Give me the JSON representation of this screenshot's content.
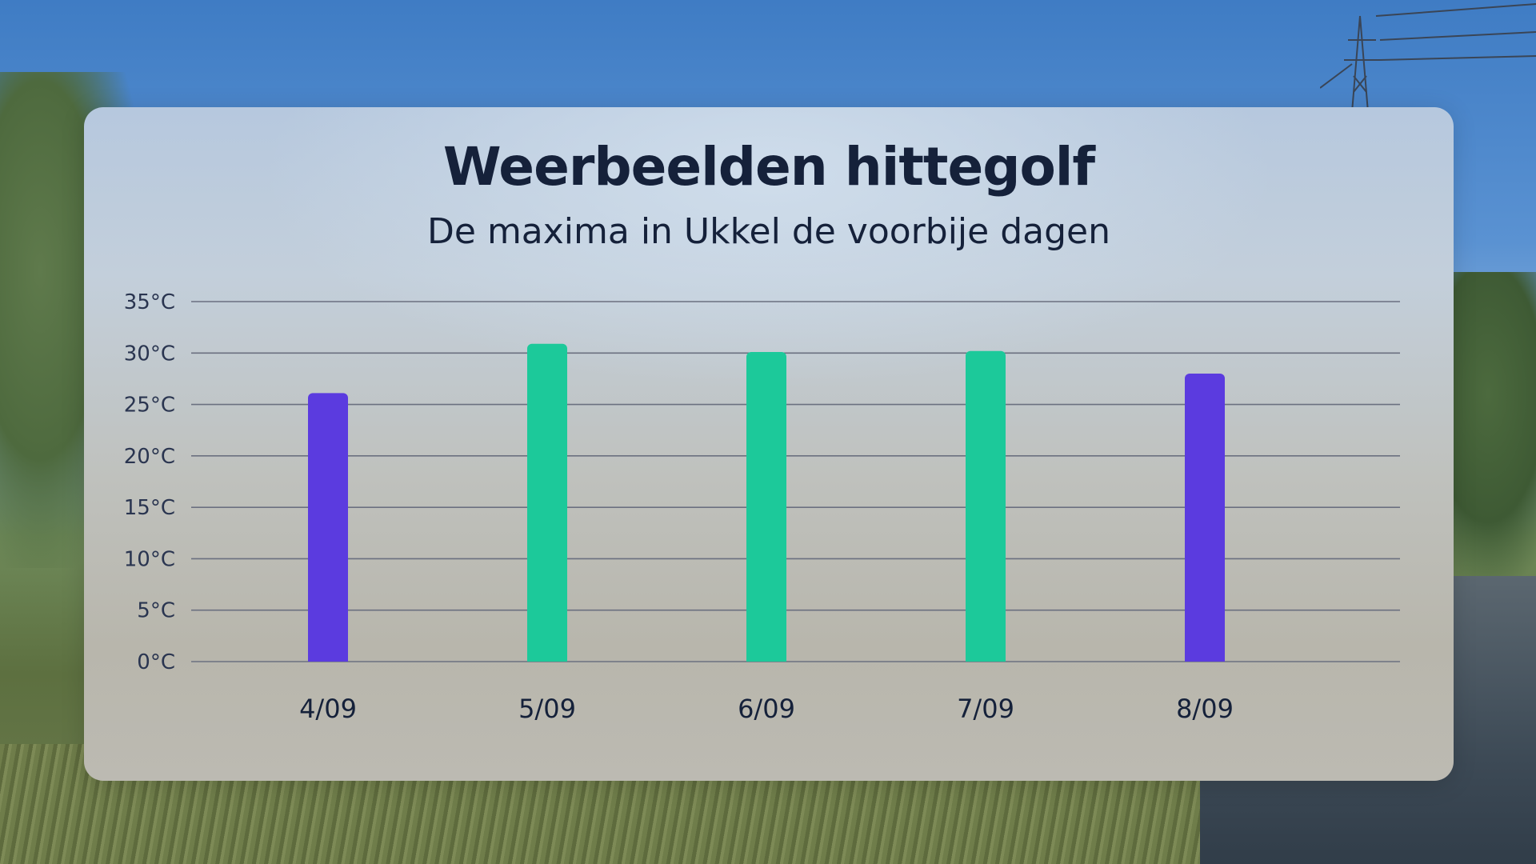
{
  "chart_data": {
    "type": "bar",
    "title": "Weerbeelden hittegolf",
    "subtitle": "De maxima in Ukkel de voorbije dagen",
    "categories": [
      "4/09",
      "5/09",
      "6/09",
      "7/09",
      "8/09"
    ],
    "values": [
      26.1,
      30.9,
      30.1,
      30.2,
      28.0
    ],
    "y_ticks": [
      "0°C",
      "5°C",
      "10°C",
      "15°C",
      "20°C",
      "25°C",
      "30°C",
      "35°C"
    ],
    "ylim": [
      0,
      35
    ],
    "grid": true,
    "colors": {
      "heatwave": "#1cc99a",
      "normal": "#5b3bdf",
      "grid": "#6b7080",
      "text": "#15213a"
    },
    "bar_colors": [
      "normal",
      "heatwave",
      "heatwave",
      "heatwave",
      "normal"
    ]
  }
}
